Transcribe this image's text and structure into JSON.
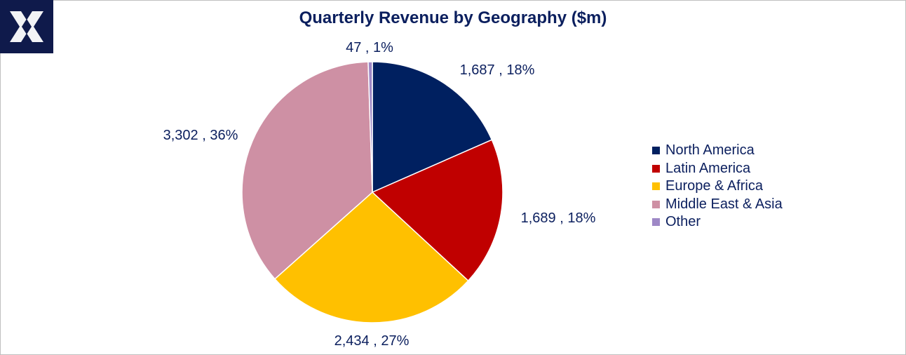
{
  "chart_data": {
    "type": "pie",
    "title": "Quarterly Revenue by Geography ($m)",
    "slices": [
      {
        "name": "North America",
        "value": 1687,
        "percent": "18%",
        "label": "1,687 , 18%",
        "color": "#002060"
      },
      {
        "name": "Latin America",
        "value": 1689,
        "percent": "18%",
        "label": "1,689 , 18%",
        "color": "#C00000"
      },
      {
        "name": "Europe & Africa",
        "value": 2434,
        "percent": "27%",
        "label": "2,434 , 27%",
        "color": "#FFC000"
      },
      {
        "name": "Middle East & Asia",
        "value": 3302,
        "percent": "36%",
        "label": "3,302 , 36%",
        "color": "#CE90A4"
      },
      {
        "name": "Other",
        "value": 47,
        "percent": "1%",
        "label": "47 , 1%",
        "color": "#9E88C6"
      }
    ],
    "legend_position": "right"
  },
  "logo": {
    "name": "logo-mark-icon",
    "background": "#0F1A4B"
  }
}
